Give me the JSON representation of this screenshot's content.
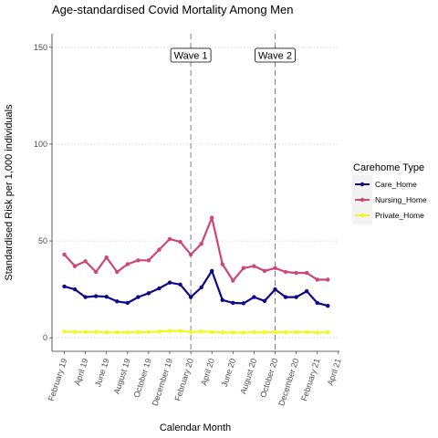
{
  "chart_data": {
    "type": "line",
    "title": "Age-standardised Covid Mortality Among Men",
    "xlabel": "Calendar Month",
    "ylabel": "Standardised Risk per 1,000 individuals",
    "ylim": [
      -7,
      157
    ],
    "y_ticks": [
      0,
      50,
      100,
      150
    ],
    "x_tick_labels": [
      "February 19",
      "April 19",
      "June 19",
      "August 19",
      "October 19",
      "December 19",
      "February 20",
      "April 20",
      "June 20",
      "August 20",
      "October 20",
      "December 20",
      "February 21",
      "April 21"
    ],
    "x_tick_index": [
      0,
      2,
      4,
      6,
      8,
      10,
      12,
      14,
      16,
      18,
      20,
      22,
      24,
      26
    ],
    "grid": "horizontal dotted",
    "legend_title": "Carehome Type",
    "legend_position": "right",
    "series": [
      {
        "name": "Care_Home",
        "color": "#0d0887",
        "values": [
          26.5,
          25,
          21,
          21.5,
          21.2,
          18.8,
          18,
          21,
          23,
          25.5,
          28.5,
          27.5,
          21,
          26,
          34.5,
          19.5,
          18,
          17.8,
          21,
          19,
          25,
          21,
          21,
          24,
          18,
          16.5
        ]
      },
      {
        "name": "Nursing_Home",
        "color": "#cc4778",
        "values": [
          43,
          37,
          39.5,
          34,
          41.5,
          34,
          38,
          40,
          40,
          45.5,
          51,
          49.5,
          43,
          48.5,
          62,
          38,
          29.5,
          36,
          37,
          34.5,
          36,
          34,
          33.5,
          33.5,
          30,
          30
        ]
      },
      {
        "name": "Private_Home",
        "color": "#f0f921",
        "values": [
          3.2,
          3,
          3,
          3,
          2.8,
          2.8,
          2.8,
          2.9,
          3,
          3.2,
          3.5,
          3.5,
          3,
          3.2,
          3,
          2.8,
          2.7,
          2.7,
          2.8,
          2.8,
          2.9,
          2.8,
          2.9,
          3,
          2.7,
          2.8
        ]
      }
    ],
    "annotations": [
      {
        "label": "Wave 1",
        "x_index": 12
      },
      {
        "label": "Wave 2",
        "x_index": 20
      }
    ]
  }
}
